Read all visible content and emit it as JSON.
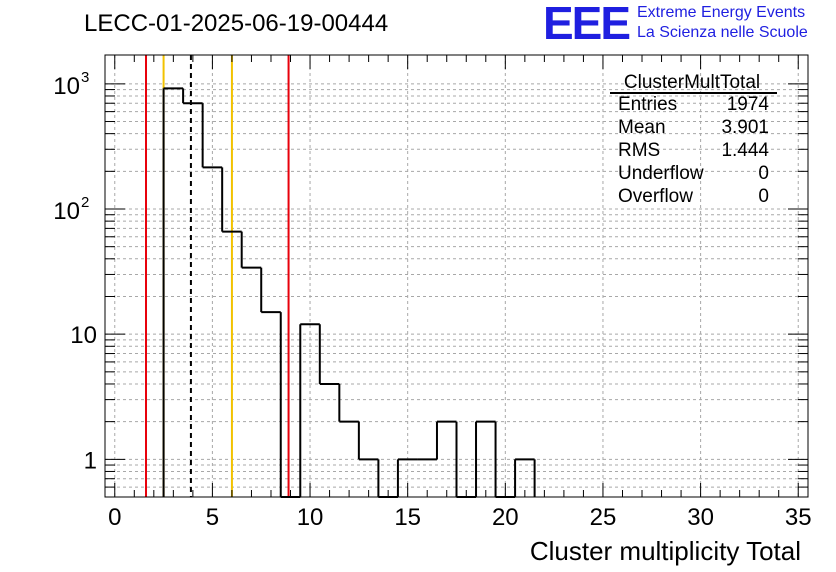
{
  "title": "LECC-01-2025-06-19-00444",
  "logo": {
    "mark": "EEE",
    "line1": "Extreme Energy Events",
    "line2": "La Scienza nelle Scuole"
  },
  "stats_box": {
    "name": "ClusterMultTotal",
    "rows": [
      {
        "label": "Entries",
        "value": "1974"
      },
      {
        "label": "Mean",
        "value": "3.901"
      },
      {
        "label": "RMS",
        "value": "1.444"
      },
      {
        "label": "Underflow",
        "value": "0"
      },
      {
        "label": "Overflow",
        "value": "0"
      }
    ]
  },
  "chart_data": {
    "type": "histogram",
    "xlabel": "Cluster multiplicity Total",
    "ylabel": "",
    "xlim": [
      -0.5,
      35.5
    ],
    "ylim": [
      0.5,
      1700
    ],
    "y_scale": "log",
    "grid": true,
    "bin_width": 1,
    "bins": [
      {
        "x": 3,
        "count": 920
      },
      {
        "x": 4,
        "count": 700
      },
      {
        "x": 5,
        "count": 215
      },
      {
        "x": 6,
        "count": 66
      },
      {
        "x": 7,
        "count": 34
      },
      {
        "x": 8,
        "count": 15
      },
      {
        "x": 9,
        "count": 0
      },
      {
        "x": 10,
        "count": 12
      },
      {
        "x": 11,
        "count": 4
      },
      {
        "x": 12,
        "count": 2
      },
      {
        "x": 13,
        "count": 1
      },
      {
        "x": 14,
        "count": 0
      },
      {
        "x": 15,
        "count": 1
      },
      {
        "x": 16,
        "count": 1
      },
      {
        "x": 17,
        "count": 2
      },
      {
        "x": 18,
        "count": 0
      },
      {
        "x": 19,
        "count": 2
      },
      {
        "x": 20,
        "count": 0
      },
      {
        "x": 21,
        "count": 1
      }
    ],
    "x_ticks": [
      "0",
      "5",
      "10",
      "15",
      "20",
      "25",
      "30",
      "35"
    ],
    "y_ticks": [
      {
        "value": 1,
        "label": "1"
      },
      {
        "value": 10,
        "label": "10"
      },
      {
        "value": 100,
        "label": "10",
        "exp": "2"
      },
      {
        "value": 1000,
        "label": "10",
        "exp": "3"
      }
    ],
    "vertical_lines": [
      {
        "x": 1.6,
        "color": "#e8000b",
        "style": "solid"
      },
      {
        "x": 2.5,
        "color": "#f2c200",
        "style": "solid"
      },
      {
        "x": 3.9,
        "color": "#000000",
        "style": "dashed"
      },
      {
        "x": 6.0,
        "color": "#f2c200",
        "style": "solid"
      },
      {
        "x": 8.9,
        "color": "#e8000b",
        "style": "solid"
      }
    ]
  }
}
